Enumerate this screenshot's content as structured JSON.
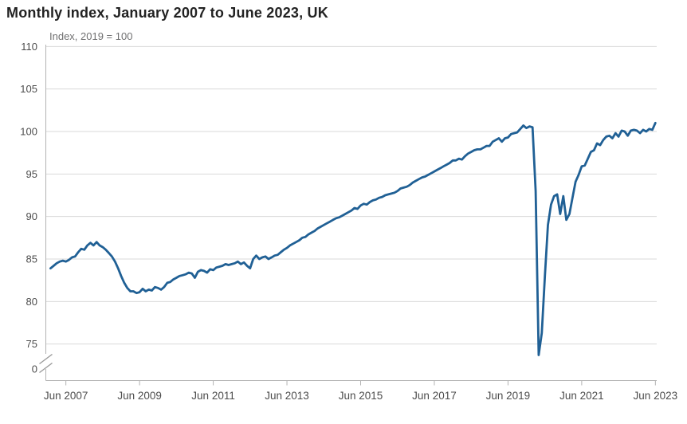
{
  "header": {
    "title": "Monthly index, January 2007 to June 2023, UK",
    "subtitle": "Index, 2019 = 100"
  },
  "style": {
    "line_color": "#206095",
    "grid_color": "#d9d9d9",
    "axis_color": "#b3b3b3",
    "tick_label_color": "#4d4d4d",
    "title_color": "#222222",
    "subtitle_color": "#707071",
    "background_color": "#ffffff"
  },
  "chart_data": {
    "type": "line",
    "title": "Monthly index, January 2007 to June 2023, UK",
    "subtitle": "Index, 2019 = 100",
    "series_name": "Monthly index (2019 = 100)",
    "x_start": "January 2007",
    "x_end": "June 2023",
    "x_tick_labels": [
      "Jun 2007",
      "Jun 2009",
      "Jun 2011",
      "Jun 2013",
      "Jun 2015",
      "Jun 2017",
      "Jun 2019",
      "Jun 2021",
      "Jun 2023"
    ],
    "x_tick_months": [
      5,
      29,
      53,
      77,
      101,
      125,
      149,
      173,
      197
    ],
    "y_ticks": [
      110,
      105,
      100,
      95,
      90,
      85,
      80,
      75
    ],
    "y_axis_zero_label": "0",
    "axis_break": true,
    "ylim_display": [
      75,
      110
    ],
    "grid": true,
    "legend": "none",
    "values": [
      83.9,
      84.2,
      84.5,
      84.7,
      84.8,
      84.7,
      84.9,
      85.2,
      85.3,
      85.8,
      86.2,
      86.1,
      86.6,
      86.9,
      86.6,
      87.0,
      86.6,
      86.4,
      86.1,
      85.7,
      85.3,
      84.7,
      83.9,
      83.0,
      82.2,
      81.6,
      81.2,
      81.2,
      81.0,
      81.1,
      81.5,
      81.2,
      81.4,
      81.3,
      81.7,
      81.6,
      81.4,
      81.7,
      82.2,
      82.3,
      82.6,
      82.8,
      83.0,
      83.1,
      83.2,
      83.4,
      83.3,
      82.8,
      83.5,
      83.7,
      83.6,
      83.4,
      83.8,
      83.7,
      84.0,
      84.1,
      84.2,
      84.4,
      84.3,
      84.4,
      84.5,
      84.7,
      84.4,
      84.6,
      84.2,
      83.9,
      85.0,
      85.4,
      85.0,
      85.2,
      85.3,
      85.0,
      85.2,
      85.4,
      85.5,
      85.8,
      86.1,
      86.3,
      86.6,
      86.8,
      87.0,
      87.2,
      87.5,
      87.6,
      87.9,
      88.1,
      88.3,
      88.6,
      88.8,
      89.0,
      89.2,
      89.4,
      89.6,
      89.8,
      89.9,
      90.1,
      90.3,
      90.5,
      90.7,
      91.0,
      90.9,
      91.3,
      91.5,
      91.4,
      91.7,
      91.9,
      92.0,
      92.2,
      92.3,
      92.5,
      92.6,
      92.7,
      92.8,
      93.0,
      93.3,
      93.4,
      93.5,
      93.7,
      94.0,
      94.2,
      94.4,
      94.6,
      94.7,
      94.9,
      95.1,
      95.3,
      95.5,
      95.7,
      95.9,
      96.1,
      96.3,
      96.6,
      96.6,
      96.8,
      96.7,
      97.1,
      97.4,
      97.6,
      97.8,
      97.9,
      97.9,
      98.1,
      98.3,
      98.3,
      98.8,
      99.0,
      99.2,
      98.8,
      99.2,
      99.3,
      99.7,
      99.8,
      99.9,
      100.3,
      100.7,
      100.4,
      100.6,
      100.5,
      93.0,
      73.7,
      76.3,
      83.0,
      89.0,
      91.4,
      92.4,
      92.6,
      90.3,
      92.4,
      89.6,
      90.3,
      92.2,
      94.1,
      94.9,
      95.9,
      96.0,
      96.8,
      97.6,
      97.8,
      98.6,
      98.4,
      99.0,
      99.4,
      99.5,
      99.2,
      99.8,
      99.4,
      100.1,
      100.0,
      99.5,
      100.1,
      100.2,
      100.1,
      99.8,
      100.2,
      100.0,
      100.3,
      100.2,
      101.0
    ]
  }
}
